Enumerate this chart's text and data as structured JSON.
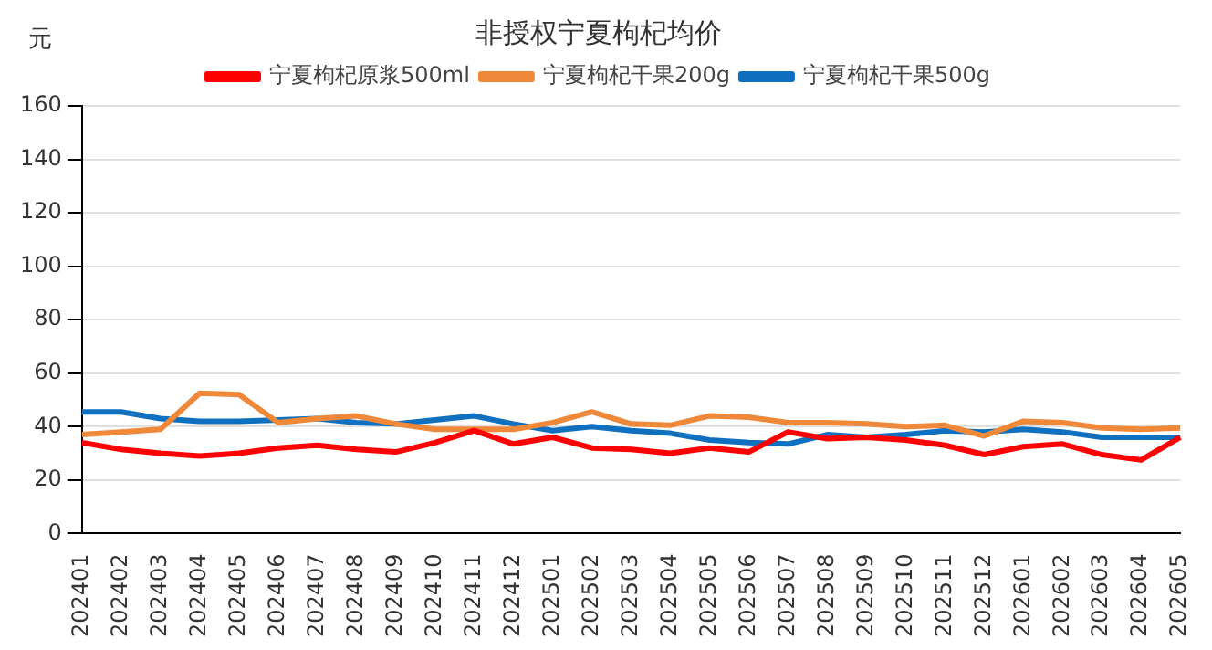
{
  "chart_data": {
    "type": "line",
    "title": "非授权宁夏枸杞均价",
    "ylabel": "元",
    "categories": [
      "202401",
      "202402",
      "202403",
      "202404",
      "202405",
      "202406",
      "202407",
      "202408",
      "202409",
      "202410",
      "202411",
      "202412",
      "202501",
      "202502",
      "202503",
      "202504",
      "202505",
      "202506",
      "202507",
      "202508",
      "202509",
      "202510",
      "202511",
      "202512",
      "202601",
      "202602",
      "202603",
      "202604",
      "202605"
    ],
    "series": [
      {
        "name": "宁夏枸杞原浆500ml",
        "color": "#ff0000",
        "values": [
          34,
          31.5,
          30,
          29,
          30,
          32,
          33,
          31.5,
          30.5,
          34,
          38.5,
          33.5,
          36,
          32,
          31.5,
          30,
          32,
          30.5,
          38,
          35.5,
          36,
          35,
          33,
          29.5,
          32.5,
          33.5,
          29.5,
          27.5,
          36
        ]
      },
      {
        "name": "宁夏枸杞干果200g",
        "color": "#f0883a",
        "values": [
          37,
          38,
          39,
          52.5,
          52,
          41.5,
          43,
          44,
          41,
          39,
          39,
          39,
          41.5,
          45.5,
          41,
          40.5,
          44,
          43.5,
          41.5,
          41.5,
          41,
          40,
          40.5,
          36.5,
          42,
          41.5,
          39.5,
          39,
          39.5
        ]
      },
      {
        "name": "宁夏枸杞干果500g",
        "color": "#1070c0",
        "values": [
          45.5,
          45.5,
          43,
          42,
          42,
          42.5,
          43,
          41.5,
          41,
          42.5,
          44,
          41,
          38.5,
          40,
          38.5,
          37.5,
          35,
          34,
          33.5,
          37,
          36,
          37,
          38.5,
          38,
          39,
          38,
          36,
          36,
          36
        ]
      }
    ],
    "ylim": [
      0,
      160
    ],
    "yticks": [
      0,
      20,
      40,
      60,
      80,
      100,
      120,
      140,
      160
    ],
    "grid": "y",
    "legend": "top",
    "marker": "none",
    "line_style": "solid"
  }
}
